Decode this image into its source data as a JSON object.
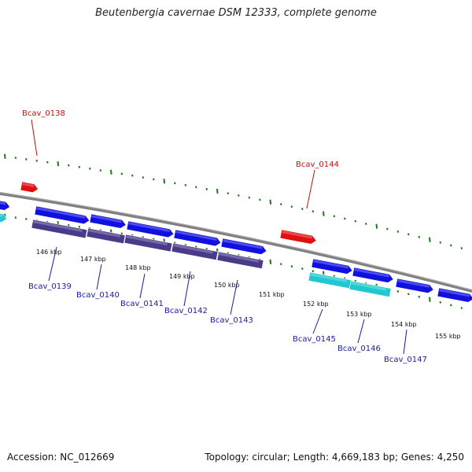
{
  "title": "Beutenbergia cavernae DSM 12333, complete genome",
  "footer": {
    "accession": "Accession: NC_012669",
    "summary": "Topology: circular; Length: 4,669,183 bp; Genes: 4,250"
  },
  "colors": {
    "backbone": "#808080",
    "tick": "#1a7a1a",
    "forward_gene": "#1010e0",
    "reverse_gene": "#4a3a8a",
    "rna_gene": "#20c8d0",
    "highlight_gene": "#e01010",
    "label_blue": "#1a1aa0",
    "label_red": "#c01010"
  },
  "scale_labels": [
    "146 kbp",
    "147 kbp",
    "148 kbp",
    "149 kbp",
    "150 kbp",
    "151 kbp",
    "152 kbp",
    "153 kbp",
    "154 kbp",
    "155 kbp"
  ],
  "gene_labels": [
    {
      "id": "Bcav_0138",
      "color": "red"
    },
    {
      "id": "Bcav_0144",
      "color": "red"
    },
    {
      "id": "Bcav_0139",
      "color": "blue"
    },
    {
      "id": "Bcav_0140",
      "color": "blue"
    },
    {
      "id": "Bcav_0141",
      "color": "blue"
    },
    {
      "id": "Bcav_0142",
      "color": "blue"
    },
    {
      "id": "Bcav_0143",
      "color": "blue"
    },
    {
      "id": "Bcav_0145",
      "color": "blue"
    },
    {
      "id": "Bcav_0146",
      "color": "blue"
    },
    {
      "id": "Bcav_0147",
      "color": "blue"
    }
  ]
}
